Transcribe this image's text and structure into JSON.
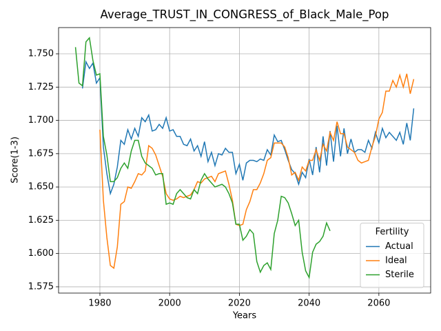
{
  "chart_data": {
    "type": "line",
    "title": "Average_TRUST_IN_CONGRESS_of_Black_Male_Pop",
    "x_label": "Years",
    "y_label": "Score(1-3)",
    "x": [
      1973,
      1974,
      1975,
      1976,
      1977,
      1978,
      1979,
      1980,
      1981,
      1982,
      1983,
      1984,
      1985,
      1986,
      1987,
      1988,
      1989,
      1990,
      1991,
      1992,
      1993,
      1994,
      1995,
      1996,
      1997,
      1998,
      1999,
      2000,
      2001,
      2002,
      2003,
      2004,
      2005,
      2006,
      2007,
      2008,
      2009,
      2010,
      2011,
      2012,
      2013,
      2014,
      2015,
      2016,
      2017,
      2018,
      2019,
      2020,
      2021,
      2022,
      2023,
      2024,
      2025,
      2026,
      2027,
      2028,
      2029,
      2030,
      2031,
      2032,
      2033,
      2034,
      2035,
      2036,
      2037,
      2038,
      2039,
      2040,
      2041,
      2042,
      2043,
      2044,
      2045,
      2046,
      2047,
      2048,
      2049,
      2050,
      2051,
      2052,
      2053,
      2054,
      2055,
      2056,
      2057,
      2058,
      2059,
      2060,
      2061,
      2062,
      2063,
      2064,
      2065,
      2066,
      2067,
      2068,
      2069,
      2070
    ],
    "series": [
      {
        "name": "Actual",
        "color": "#1f77b4",
        "values": [
          null,
          null,
          1.724,
          1.744,
          1.739,
          1.743,
          1.728,
          1.732,
          1.68,
          1.66,
          1.645,
          1.652,
          1.665,
          1.685,
          1.682,
          1.693,
          1.686,
          1.694,
          1.688,
          1.702,
          1.699,
          1.704,
          1.692,
          1.693,
          1.697,
          1.694,
          1.702,
          1.692,
          1.693,
          1.688,
          1.688,
          1.682,
          1.681,
          1.686,
          1.677,
          1.681,
          1.673,
          1.684,
          1.669,
          1.676,
          1.666,
          1.675,
          1.674,
          1.679,
          1.676,
          1.676,
          1.66,
          1.667,
          1.655,
          1.668,
          1.67,
          1.67,
          1.669,
          1.671,
          1.67,
          1.678,
          1.674,
          1.689,
          1.684,
          1.685,
          1.678,
          1.67,
          1.663,
          1.66,
          1.652,
          1.661,
          1.657,
          1.671,
          1.659,
          1.68,
          1.661,
          1.688,
          1.666,
          1.692,
          1.669,
          1.696,
          1.673,
          1.694,
          1.675,
          1.686,
          1.676,
          1.678,
          1.678,
          1.676,
          1.685,
          1.679,
          1.691,
          1.683,
          1.694,
          1.687,
          1.691,
          1.688,
          1.685,
          1.691,
          1.682,
          1.698,
          1.685,
          1.709
        ]
      },
      {
        "name": "Ideal",
        "color": "#ff7f0e",
        "values": [
          null,
          null,
          null,
          null,
          null,
          null,
          null,
          1.693,
          1.64,
          1.612,
          1.591,
          1.589,
          1.605,
          1.637,
          1.639,
          1.65,
          1.649,
          1.654,
          1.66,
          1.659,
          1.662,
          1.681,
          1.679,
          1.674,
          1.666,
          1.658,
          1.645,
          1.641,
          1.64,
          1.641,
          1.643,
          1.642,
          1.643,
          1.644,
          1.648,
          1.654,
          1.653,
          1.656,
          1.657,
          1.658,
          1.654,
          1.66,
          1.661,
          1.662,
          1.652,
          1.64,
          1.622,
          1.621,
          1.622,
          1.633,
          1.639,
          1.648,
          1.648,
          1.653,
          1.66,
          1.67,
          1.672,
          1.683,
          1.683,
          1.683,
          1.68,
          1.672,
          1.659,
          1.661,
          1.655,
          1.665,
          1.662,
          1.67,
          1.67,
          1.678,
          1.67,
          1.682,
          1.677,
          1.691,
          1.685,
          1.699,
          1.69,
          1.69,
          1.68,
          1.678,
          1.676,
          1.67,
          1.668,
          1.669,
          1.67,
          1.68,
          1.688,
          1.701,
          1.706,
          1.722,
          1.722,
          1.73,
          1.725,
          1.734,
          1.725,
          1.735,
          1.72,
          1.731
        ]
      },
      {
        "name": "Sterile",
        "color": "#2ca02c",
        "values": [
          1.755,
          1.728,
          1.726,
          1.759,
          1.762,
          1.745,
          1.734,
          1.735,
          1.688,
          1.674,
          1.654,
          1.654,
          1.657,
          1.664,
          1.668,
          1.664,
          1.677,
          1.685,
          1.685,
          1.673,
          1.668,
          1.666,
          1.664,
          1.659,
          1.66,
          1.66,
          1.637,
          1.638,
          1.637,
          1.645,
          1.648,
          1.645,
          1.642,
          1.641,
          1.648,
          1.645,
          1.655,
          1.66,
          1.656,
          1.653,
          1.65,
          1.651,
          1.652,
          1.65,
          1.645,
          1.638,
          1.622,
          1.622,
          1.61,
          1.613,
          1.618,
          1.615,
          1.594,
          1.586,
          1.591,
          1.593,
          1.588,
          1.615,
          1.625,
          1.643,
          1.642,
          1.638,
          1.63,
          1.621,
          1.625,
          1.601,
          1.587,
          1.582,
          1.601,
          1.607,
          1.609,
          1.613,
          1.623,
          1.617,
          null,
          null,
          null,
          null,
          null,
          null,
          null,
          null,
          null,
          null,
          null,
          null,
          null,
          null,
          null,
          null,
          null,
          null,
          null,
          null,
          null,
          null,
          null,
          null
        ]
      }
    ],
    "xlim": [
      1968.15,
      2074.85
    ],
    "xticks": [
      1980,
      2000,
      2020,
      2040,
      2060
    ],
    "ylim": [
      1.5703,
      1.7697
    ],
    "yticks": [
      1.575,
      {
        "value": 1.6,
        "label": "1.600"
      },
      1.625,
      {
        "value": 1.65,
        "label": "1.650"
      },
      1.675,
      {
        "value": 1.7,
        "label": "1.700"
      },
      1.725,
      {
        "value": 1.75,
        "label": "1.750"
      }
    ],
    "grid": true,
    "legend_title": "Fertility",
    "legend_loc": "lower right"
  }
}
